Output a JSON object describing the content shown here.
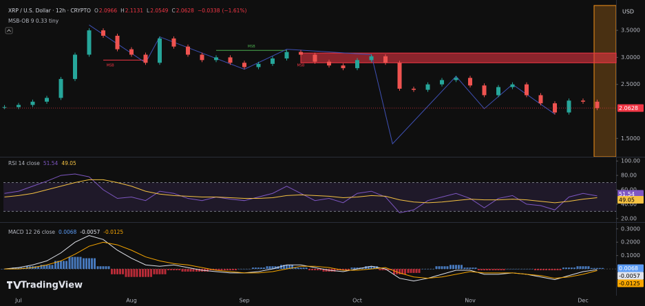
{
  "chart_data": [
    {
      "type": "candlestick",
      "title": "XRP / U.S. Dollar · 12h · CRYPTO",
      "currency": "USD",
      "ohlc": [
        {
          "label": "O",
          "value": 2.0966
        },
        {
          "label": "H",
          "value": 2.1131
        },
        {
          "label": "L",
          "value": 2.0549
        },
        {
          "label": "C",
          "value": 2.0628
        }
      ],
      "change": {
        "value": -0.0338,
        "label": "−0.0338"
      },
      "change_pct": {
        "value": -1.61,
        "label": "(−1.61%)"
      },
      "indicator": "MSB-OB 9 0.33 tiny",
      "watermark": "TradingView",
      "categories": [
        null,
        "Jul",
        null,
        null,
        null,
        null,
        null,
        null,
        null,
        "Aug",
        null,
        null,
        null,
        null,
        null,
        null,
        null,
        "Sep",
        null,
        null,
        null,
        null,
        null,
        null,
        null,
        "Oct",
        null,
        null,
        null,
        null,
        null,
        null,
        null,
        "Nov",
        null,
        null,
        null,
        null,
        null,
        null,
        null,
        "Dec",
        null
      ],
      "values": [
        2.08,
        2.12,
        2.18,
        2.25,
        2.6,
        3.05,
        3.5,
        3.4,
        3.15,
        3.05,
        2.9,
        3.35,
        3.2,
        3.05,
        2.95,
        3.0,
        2.9,
        2.82,
        2.88,
        2.98,
        3.1,
        3.05,
        2.92,
        2.85,
        2.8,
        2.95,
        3.02,
        2.9,
        2.42,
        2.4,
        2.5,
        2.58,
        2.62,
        2.48,
        2.3,
        2.45,
        2.5,
        2.3,
        2.15,
        1.98,
        2.2,
        2.18,
        2.06
      ],
      "ylim": [
        1.16,
        3.96
      ],
      "yticks": [
        {
          "value": 3.5,
          "label": "3.5000"
        },
        {
          "value": 3.0,
          "label": "3.0000"
        },
        {
          "value": 2.5,
          "label": "2.5000"
        },
        {
          "value": 1.5,
          "label": "1.5000"
        }
      ],
      "grid": false,
      "up_color": "#26a69a",
      "down_color": "#ef5350",
      "zone": {
        "values": [
          2.9,
          3.08
        ],
        "start": 21,
        "color": "#f23645"
      },
      "levels": [
        {
          "start": 15,
          "end": 20,
          "value": 3.13,
          "color": "#4caf50"
        },
        {
          "start": 7,
          "end": 10,
          "value": 2.95,
          "color": "#f23645"
        }
      ],
      "annotations": [
        {
          "text": "MSB",
          "index": 17.5,
          "value": 3.2,
          "color": "#4caf50"
        },
        {
          "text": "MSB",
          "index": 7.5,
          "value": 2.85,
          "color": "#f23645"
        },
        {
          "text": "MSB",
          "index": 21,
          "value": 2.85,
          "color": "#f23645"
        }
      ],
      "zigzag": {
        "index": [
          6,
          10,
          11,
          17,
          20,
          26,
          27.5,
          32,
          34,
          36,
          39
        ],
        "values": [
          3.6,
          2.9,
          3.38,
          2.78,
          3.15,
          3.05,
          1.4,
          2.65,
          2.05,
          2.5,
          1.95
        ],
        "color": "#3f51b5"
      }
    },
    {
      "type": "line",
      "title": "RSI 14 close",
      "series": [
        {
          "color": "#7e57c2",
          "values": [
            55,
            58,
            65,
            72,
            80,
            82,
            78,
            60,
            48,
            50,
            45,
            58,
            55,
            48,
            45,
            50,
            47,
            45,
            50,
            55,
            65,
            55,
            45,
            48,
            42,
            55,
            58,
            50,
            28,
            32,
            45,
            50,
            55,
            48,
            35,
            48,
            52,
            40,
            38,
            32,
            50,
            55,
            51.54
          ]
        },
        {
          "color": "#f5c242",
          "values": [
            50,
            52,
            55,
            60,
            65,
            70,
            74,
            74,
            70,
            65,
            58,
            54,
            52,
            51,
            50,
            50,
            49,
            48,
            48,
            49,
            52,
            53,
            52,
            51,
            49,
            50,
            52,
            51,
            46,
            43,
            42,
            43,
            45,
            47,
            46,
            46,
            47,
            46,
            44,
            42,
            44,
            47,
            49.05
          ]
        }
      ],
      "ylim": [
        16,
        104
      ],
      "yticks": [
        {
          "value": 100,
          "label": "100.00"
        },
        {
          "value": 80,
          "label": "80.00"
        },
        {
          "value": 60,
          "label": "60.00"
        },
        {
          "value": 40,
          "label": "40.00"
        },
        {
          "value": 20,
          "label": "20.00"
        }
      ],
      "overbought": 70,
      "oversold": 30
    },
    {
      "type": "macd",
      "title": "MACD 12 26 close",
      "histogram": {
        "values": [
          0,
          0.01,
          0.02,
          0.03,
          0.06,
          0.09,
          0.08,
          0.02,
          -0.04,
          -0.06,
          -0.06,
          -0.04,
          -0.01,
          -0.02,
          -0.02,
          -0.01,
          -0.01,
          0,
          0.01,
          0.02,
          0.03,
          0.01,
          -0.01,
          -0.02,
          -0.01,
          0.01,
          0.02,
          -0.01,
          -0.04,
          -0.03,
          0,
          0.02,
          0.03,
          0.01,
          -0.01,
          -0.01,
          0,
          0,
          -0.01,
          -0.01,
          0.01,
          0.02,
          0.0068
        ],
        "up_color": "#5b9cf6",
        "down_color": "#f23645"
      },
      "series": [
        {
          "color": "#e0e3eb",
          "values": [
            0.0,
            0.01,
            0.03,
            0.06,
            0.12,
            0.2,
            0.25,
            0.22,
            0.14,
            0.08,
            0.03,
            0.02,
            0.03,
            0.01,
            -0.01,
            -0.02,
            -0.03,
            -0.03,
            -0.02,
            0.0,
            0.03,
            0.03,
            0.01,
            -0.01,
            -0.02,
            0.0,
            0.02,
            0.0,
            -0.07,
            -0.09,
            -0.07,
            -0.04,
            -0.01,
            -0.01,
            -0.04,
            -0.04,
            -0.03,
            -0.04,
            -0.06,
            -0.08,
            -0.05,
            -0.02,
            -0.0057
          ]
        },
        {
          "color": "#f7a600",
          "values": [
            0,
            0,
            0.01,
            0.03,
            0.06,
            0.11,
            0.17,
            0.2,
            0.18,
            0.14,
            0.09,
            0.06,
            0.04,
            0.03,
            0.01,
            -0.01,
            -0.02,
            -0.03,
            -0.03,
            -0.02,
            0,
            0.02,
            0.02,
            0.01,
            -0.01,
            -0.01,
            0,
            0.01,
            -0.03,
            -0.06,
            -0.07,
            -0.06,
            -0.04,
            -0.02,
            -0.03,
            -0.03,
            -0.03,
            -0.04,
            -0.05,
            -0.07,
            -0.06,
            -0.04,
            -0.0125
          ]
        }
      ],
      "ylim": [
        -0.19,
        0.34
      ],
      "yticks": [
        {
          "value": 0.3,
          "label": "0.3000"
        },
        {
          "value": 0.2,
          "label": "0.2000"
        },
        {
          "value": 0.1,
          "label": "0.1000"
        }
      ]
    }
  ]
}
